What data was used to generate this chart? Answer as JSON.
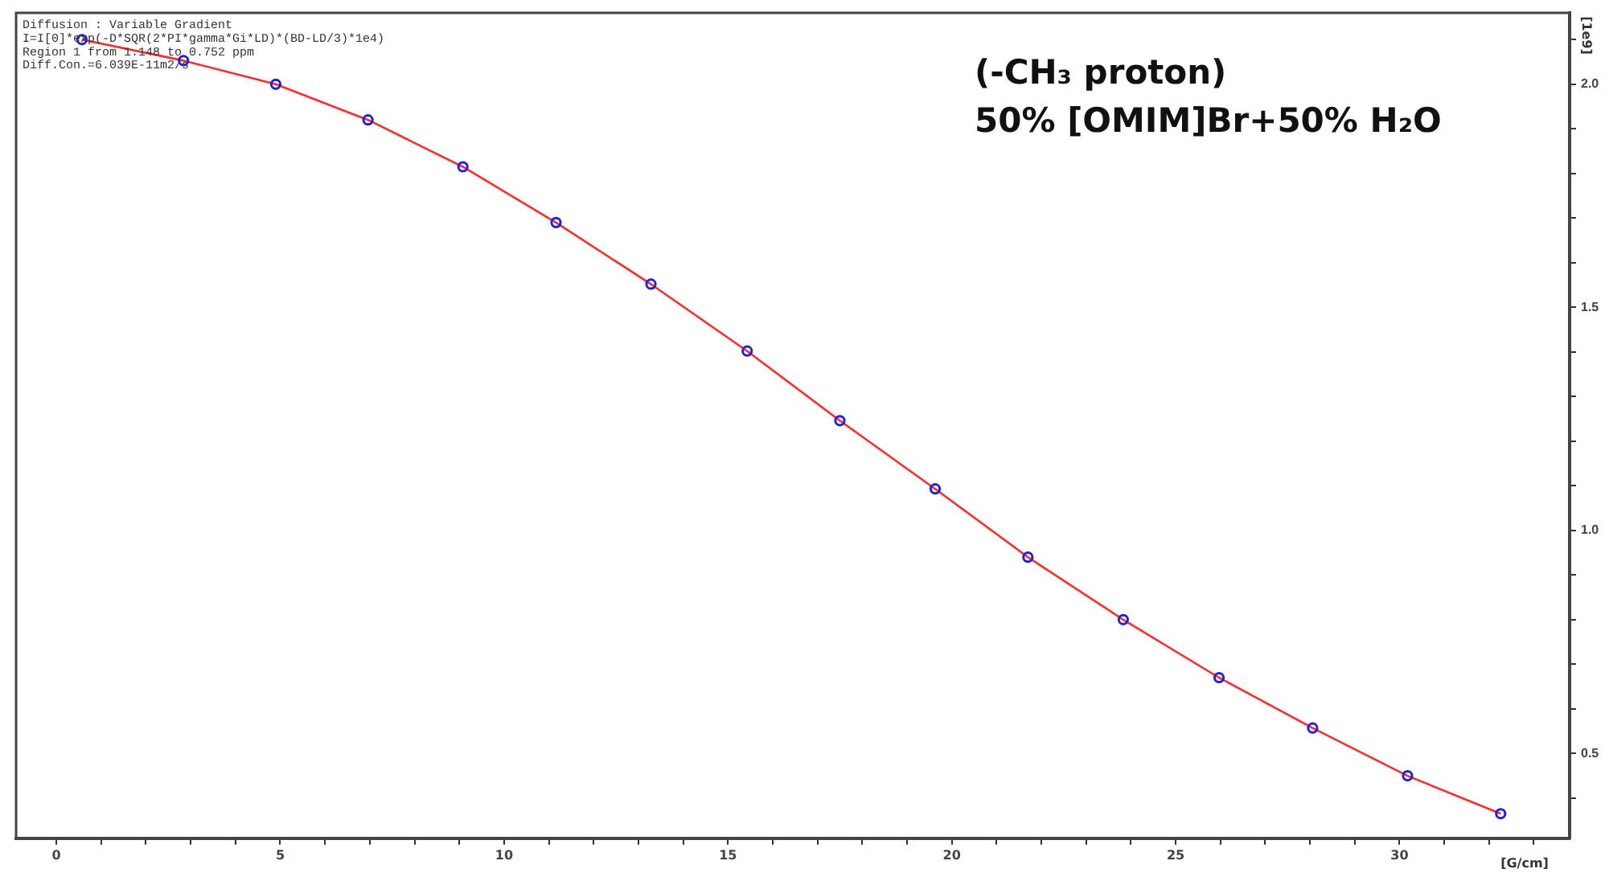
{
  "chart_data": {
    "type": "scatter",
    "xlabel": "[G/cm]",
    "ylabel": "[1e9]",
    "annotations": [
      "Diffusion : Variable Gradient",
      "I=I[0]*exp(-D*SQR(2*PI*gamma*Gi*LD)*(BD-LD/3)*1e4)",
      "Region 1 from 1.148 to 0.752 ppm",
      "Diff.Con.=6.039E-11m2/s",
      "(-CH₃ proton)",
      "50% [OMIM]Br+50% H₂O"
    ],
    "xlim": [
      -0.9,
      33.8
    ],
    "ylim": [
      0.31,
      2.16
    ],
    "xticks": [
      0,
      {
        "value": 1,
        "label": null
      },
      {
        "value": 2,
        "label": null
      },
      {
        "value": 3,
        "label": null
      },
      {
        "value": 4,
        "label": null
      },
      5,
      {
        "value": 6,
        "label": null
      },
      {
        "value": 7,
        "label": null
      },
      {
        "value": 8,
        "label": null
      },
      {
        "value": 9,
        "label": null
      },
      10,
      {
        "value": 11,
        "label": null
      },
      {
        "value": 12,
        "label": null
      },
      {
        "value": 13,
        "label": null
      },
      {
        "value": 14,
        "label": null
      },
      15,
      {
        "value": 16,
        "label": null
      },
      {
        "value": 17,
        "label": null
      },
      {
        "value": 18,
        "label": null
      },
      {
        "value": 19,
        "label": null
      },
      20,
      {
        "value": 21,
        "label": null
      },
      {
        "value": 22,
        "label": null
      },
      {
        "value": 23,
        "label": null
      },
      {
        "value": 24,
        "label": null
      },
      25,
      {
        "value": 26,
        "label": null
      },
      {
        "value": 27,
        "label": null
      },
      {
        "value": 28,
        "label": null
      },
      {
        "value": 29,
        "label": null
      },
      30,
      {
        "value": 31,
        "label": null
      },
      {
        "value": 32,
        "label": null
      },
      {
        "value": 33,
        "label": null
      }
    ],
    "yticks": [
      {
        "value": 0.4,
        "label": null
      },
      0.5,
      {
        "value": 0.6,
        "label": null
      },
      {
        "value": 0.7,
        "label": null
      },
      {
        "value": 0.8,
        "label": null
      },
      {
        "value": 0.9,
        "label": null
      },
      {
        "value": 1,
        "label": "1.0"
      },
      {
        "value": 1.1,
        "label": null
      },
      {
        "value": 1.2,
        "label": null
      },
      {
        "value": 1.3,
        "label": null
      },
      {
        "value": 1.4,
        "label": null
      },
      1.5,
      {
        "value": 1.6,
        "label": null
      },
      {
        "value": 1.7,
        "label": null
      },
      {
        "value": 1.8,
        "label": null
      },
      {
        "value": 1.9,
        "label": null
      },
      {
        "value": 2,
        "label": "2.0"
      },
      {
        "value": 2.1,
        "label": null
      }
    ],
    "grid": false,
    "legend": false,
    "series": [
      {
        "type": "line",
        "color": "#ff2a2a",
        "marker": "none",
        "line_style": "solid",
        "x": [
          0.57,
          2.84,
          4.9,
          6.96,
          9.08,
          11.16,
          13.28,
          15.43,
          17.5,
          19.63,
          21.7,
          23.83,
          25.97,
          28.06,
          30.18,
          32.26
        ],
        "values": [
          2.1,
          2.053,
          2.0,
          1.92,
          1.815,
          1.69,
          1.552,
          1.402,
          1.246,
          1.093,
          0.94,
          0.8,
          0.67,
          0.557,
          0.45,
          0.365
        ]
      },
      {
        "type": "scatter",
        "color": "#2020e0",
        "marker": "circle",
        "x": [
          0.57,
          2.84,
          4.9,
          6.96,
          9.08,
          11.16,
          13.28,
          15.43,
          17.5,
          19.63,
          21.7,
          23.83,
          25.97,
          28.06,
          30.18,
          32.26
        ],
        "values": [
          2.1,
          2.053,
          2.0,
          1.92,
          1.815,
          1.69,
          1.552,
          1.402,
          1.246,
          1.093,
          0.94,
          0.8,
          0.67,
          0.557,
          0.45,
          0.365
        ]
      }
    ]
  }
}
